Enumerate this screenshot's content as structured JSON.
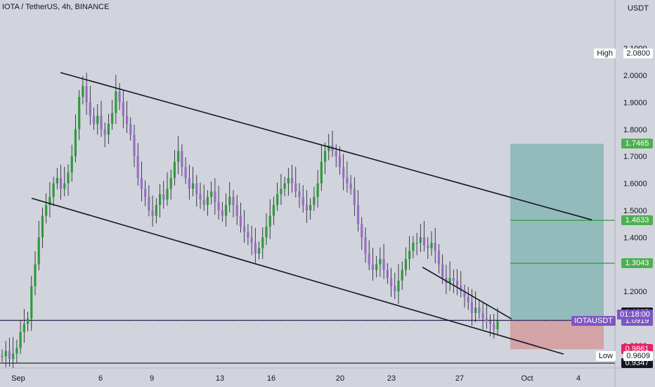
{
  "title": "IOTA / TetherUS, 4h, BINANCE",
  "unit": "USDT",
  "chart_data": {
    "type": "candlestick",
    "symbol": "IOTAUSDT",
    "timeframe": "4h",
    "exchange": "BINANCE",
    "x_ticks": [
      "Sep",
      "6",
      "9",
      "13",
      "16",
      "20",
      "23",
      "27",
      "Oct",
      "4"
    ],
    "y_ticks": [
      "2.1000",
      "2.0000",
      "1.9000",
      "1.8000",
      "1.7000",
      "1.6000",
      "1.5000",
      "1.4000",
      "1.3000",
      "1.2000",
      "1.1000",
      "1.0000"
    ],
    "ylim": [
      0.89,
      2.19
    ],
    "high_label": "High",
    "high_value": "2.0800",
    "low_label": "Low",
    "low_value": "0.9609",
    "price_tags": [
      {
        "value": "1.7465",
        "color": "#4caf50"
      },
      {
        "value": "1.4633",
        "color": "#4caf50"
      },
      {
        "value": "1.3043",
        "color": "#4caf50"
      },
      {
        "value": "1.1225",
        "color": "#131722"
      },
      {
        "value": "1.0928",
        "color": "#131722"
      },
      {
        "value": "1.0919",
        "color": "#7e57c2"
      },
      {
        "value": "0.9861",
        "color": "#e91e63"
      },
      {
        "value": "0.9347",
        "color": "#131722"
      }
    ],
    "symbol_tag": "IOTAUSDT",
    "countdown": "01:18:00",
    "levels": {
      "support": 1.0928,
      "bottom": 0.9347,
      "entry": 1.0919,
      "stop": 0.9861,
      "target": 1.7465,
      "tp1": 1.3043,
      "tp2": 1.4633
    },
    "trendlines": [
      {
        "name": "channel-top",
        "from": [
          "Sep 3",
          2.01
        ],
        "to": [
          "Oct 2",
          1.465
        ]
      },
      {
        "name": "channel-bottom",
        "from": [
          "Sep 4",
          1.545
        ],
        "to": [
          "Oct 3",
          0.968
        ]
      },
      {
        "name": "wedge-top",
        "from": [
          "Sep 25",
          1.29
        ],
        "to": [
          "Sep 30",
          1.098
        ]
      }
    ],
    "closes": [
      0.96,
      0.98,
      0.95,
      0.97,
      0.99,
      1.05,
      1.08,
      1.1,
      1.22,
      1.3,
      1.4,
      1.48,
      1.52,
      1.55,
      1.6,
      1.62,
      1.58,
      1.6,
      1.64,
      1.7,
      1.8,
      1.92,
      1.96,
      1.9,
      1.85,
      1.82,
      1.85,
      1.8,
      1.78,
      1.82,
      1.86,
      1.94,
      1.9,
      1.85,
      1.82,
      1.78,
      1.7,
      1.62,
      1.58,
      1.55,
      1.5,
      1.48,
      1.52,
      1.56,
      1.54,
      1.58,
      1.62,
      1.68,
      1.72,
      1.66,
      1.62,
      1.58,
      1.6,
      1.56,
      1.54,
      1.52,
      1.55,
      1.57,
      1.53,
      1.5,
      1.48,
      1.52,
      1.55,
      1.52,
      1.48,
      1.44,
      1.42,
      1.4,
      1.38,
      1.34,
      1.36,
      1.4,
      1.44,
      1.48,
      1.52,
      1.56,
      1.58,
      1.6,
      1.62,
      1.6,
      1.57,
      1.55,
      1.52,
      1.5,
      1.52,
      1.55,
      1.6,
      1.68,
      1.72,
      1.74,
      1.72,
      1.7,
      1.66,
      1.62,
      1.6,
      1.58,
      1.52,
      1.45,
      1.4,
      1.34,
      1.3,
      1.28,
      1.3,
      1.32,
      1.28,
      1.25,
      1.22,
      1.2,
      1.24,
      1.28,
      1.32,
      1.35,
      1.38,
      1.38,
      1.4,
      1.37,
      1.36,
      1.38,
      1.35,
      1.3,
      1.25,
      1.23,
      1.25,
      1.24,
      1.22,
      1.2,
      1.18,
      1.16,
      1.12,
      1.14,
      1.12,
      1.1,
      1.09,
      1.08,
      1.06,
      1.09
    ]
  }
}
